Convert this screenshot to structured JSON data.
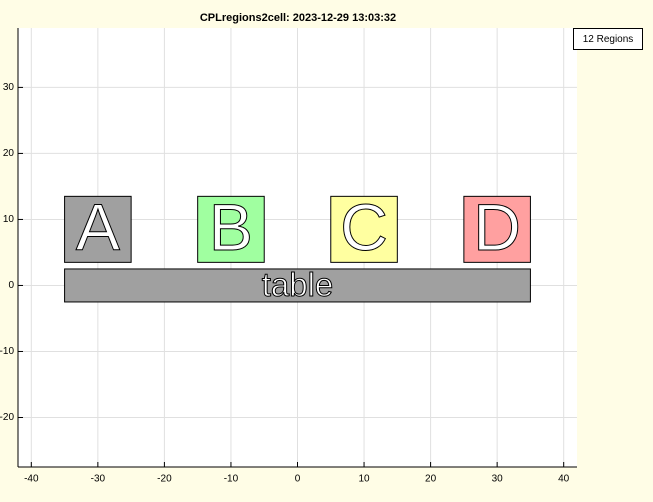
{
  "chart_data": {
    "type": "regions",
    "title": "CPLregions2cell: 2023-12-29 13:03:32",
    "button": "12 Regions",
    "xlim": [
      -42,
      42
    ],
    "ylim": [
      -27.5,
      39
    ],
    "xticks": [
      -40,
      -30,
      -20,
      -10,
      0,
      10,
      20,
      30,
      40
    ],
    "yticks": [
      -20,
      -10,
      0,
      10,
      20,
      30
    ],
    "grid": true,
    "regions": [
      {
        "label": "A",
        "color": "#a0a0a0",
        "x": [
          -35,
          -25
        ],
        "y": [
          3.5,
          13.5
        ]
      },
      {
        "label": "B",
        "color": "#a0ffa0",
        "x": [
          -15,
          -5
        ],
        "y": [
          3.5,
          13.5
        ]
      },
      {
        "label": "C",
        "color": "#ffffa0",
        "x": [
          5,
          15
        ],
        "y": [
          3.5,
          13.5
        ]
      },
      {
        "label": "D",
        "color": "#ffa0a0",
        "x": [
          25,
          35
        ],
        "y": [
          3.5,
          13.5
        ]
      },
      {
        "label": "table",
        "color": "#a0a0a0",
        "x": [
          -35,
          35
        ],
        "y": [
          -2.5,
          2.5
        ]
      }
    ]
  }
}
